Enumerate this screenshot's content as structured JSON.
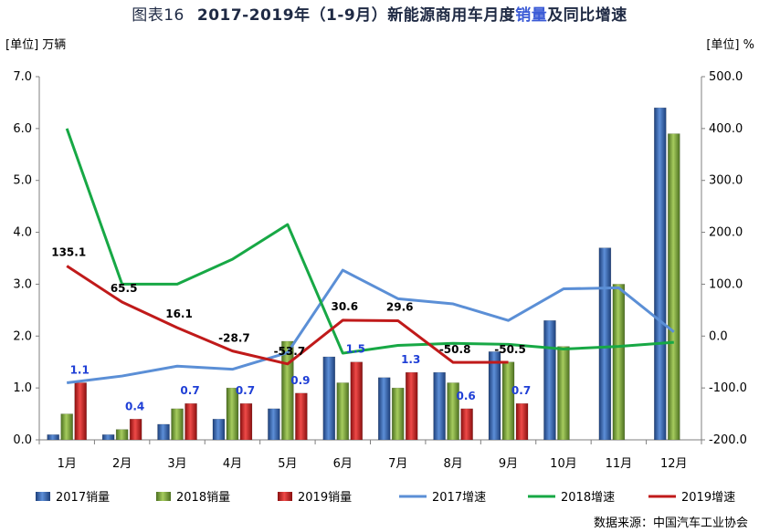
{
  "title": {
    "prefix": "图表16",
    "part1": "2017-2019年（1-9月）新能源商用车月度",
    "highlight": "销量",
    "part2": "及同比增速"
  },
  "source": "数据来源：中国汽车工业协会",
  "chart_data": {
    "type": "bar+line",
    "categories": [
      "1月",
      "2月",
      "3月",
      "4月",
      "5月",
      "6月",
      "7月",
      "8月",
      "9月",
      "10月",
      "11月",
      "12月"
    ],
    "y_left": {
      "unit_label": "[单位] 万辆",
      "lim": [
        0,
        7
      ],
      "ticks": [
        "0.0",
        "1.0",
        "2.0",
        "3.0",
        "4.0",
        "5.0",
        "6.0",
        "7.0"
      ]
    },
    "y_right": {
      "unit_label": "[单位] %",
      "lim": [
        -200,
        500
      ],
      "ticks": [
        "-200.0",
        "-100.0",
        "0.0",
        "100.0",
        "200.0",
        "300.0",
        "400.0",
        "500.0"
      ]
    },
    "bar_series": [
      {
        "name": "2017销量",
        "color": "#2f5fa8",
        "values": [
          0.1,
          0.1,
          0.3,
          0.4,
          0.6,
          1.6,
          1.2,
          1.3,
          1.7,
          2.3,
          3.7,
          6.4
        ]
      },
      {
        "name": "2018销量",
        "color": "#77a033",
        "values": [
          0.5,
          0.2,
          0.6,
          1.0,
          1.9,
          1.1,
          1.0,
          1.1,
          1.5,
          1.8,
          3.0,
          5.9
        ]
      },
      {
        "name": "2019销量",
        "color": "#c8201e",
        "values": [
          1.1,
          0.4,
          0.7,
          0.7,
          0.9,
          1.5,
          1.3,
          0.6,
          0.7,
          null,
          null,
          null
        ]
      }
    ],
    "line_series": [
      {
        "name": "2017增速",
        "color": "#5b8fd6",
        "values": [
          -90,
          -77,
          -58,
          -64,
          -32,
          127,
          72,
          62,
          30,
          91,
          93,
          8
        ]
      },
      {
        "name": "2018增速",
        "color": "#17a845",
        "values": [
          400,
          100,
          100,
          148,
          215,
          -33,
          -18,
          -14,
          -16,
          -25,
          -20,
          -12
        ]
      },
      {
        "name": "2019增速",
        "color": "#c01a1a",
        "values": [
          135.1,
          65.5,
          16.1,
          -28.7,
          -53.7,
          30.6,
          29.6,
          -50.8,
          -50.5,
          null,
          null,
          null
        ]
      }
    ],
    "data_labels_2019_sales": [
      "1.1",
      "0.4",
      "0.7",
      "0.7",
      "0.9",
      "1.5",
      "1.3",
      "0.6",
      "0.7"
    ],
    "data_labels_2019_growth": [
      "135.1",
      "65.5",
      "16.1",
      "-28.7",
      "-53.7",
      "30.6",
      "29.6",
      "-50.8",
      "-50.5"
    ],
    "colors": {
      "sales_label": "#1f3fd6",
      "growth_label": "#000000",
      "axis": "#7f7f7f"
    },
    "legend_position": "bottom",
    "grid": false
  }
}
